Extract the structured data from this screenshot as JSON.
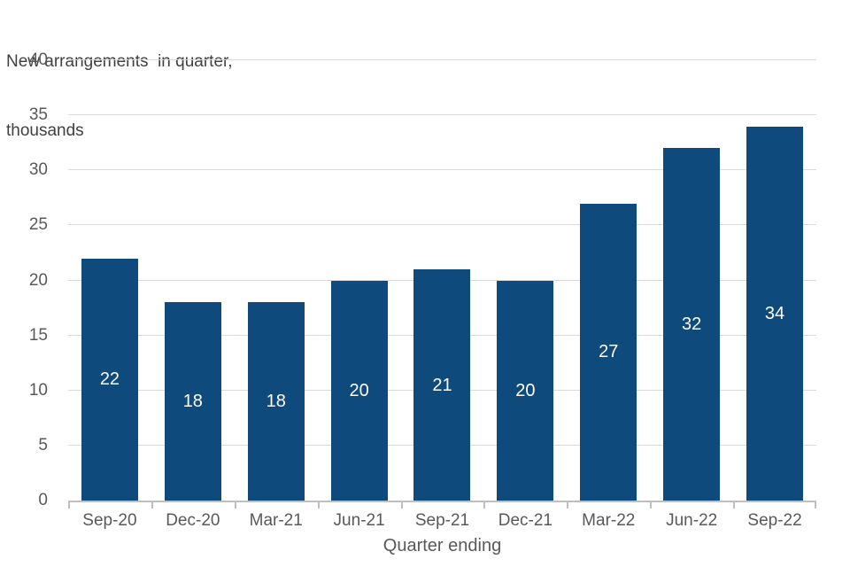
{
  "chart_data": {
    "type": "bar",
    "title_lines": [
      "New arrangements  in quarter,",
      "thousands"
    ],
    "categories": [
      "Sep-20",
      "Dec-20",
      "Mar-21",
      "Jun-21",
      "Sep-21",
      "Dec-21",
      "Mar-22",
      "Jun-22",
      "Sep-22"
    ],
    "values": [
      22,
      18,
      18,
      20,
      21,
      20,
      27,
      32,
      34
    ],
    "xlabel": "Quarter ending",
    "ylabel": "",
    "ylim": [
      0,
      40
    ],
    "yticks": [
      0,
      5,
      10,
      15,
      20,
      25,
      30,
      35,
      40
    ],
    "grid": "horizontal",
    "legend": "none",
    "data_labels": "inside-center",
    "colors": {
      "bar": "#0F4A7C",
      "data_label": "#FFFFFF",
      "title_text": "#404040",
      "axis_text": "#595959",
      "gridline": "#D9D9D9",
      "axis_line": "#BFBFBF"
    }
  }
}
